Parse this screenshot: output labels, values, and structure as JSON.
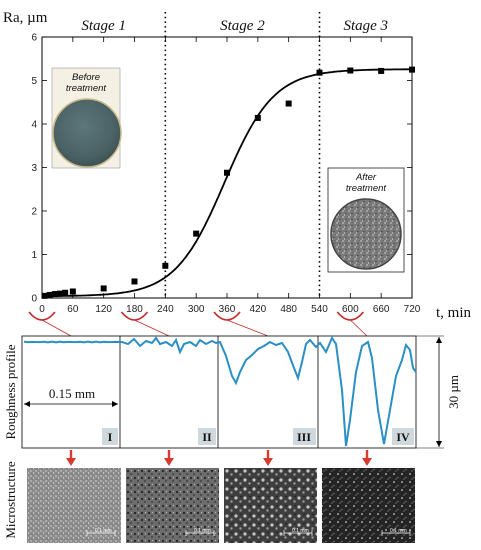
{
  "chart_data": {
    "type": "scatter",
    "ylabel": "Ra, µm",
    "xlabel": "t, min",
    "xlim": [
      0,
      720
    ],
    "ylim": [
      0,
      6
    ],
    "x_ticks": [
      0,
      60,
      120,
      180,
      240,
      300,
      360,
      420,
      480,
      540,
      600,
      660,
      720
    ],
    "y_ticks": [
      0,
      1,
      2,
      3,
      4,
      5,
      6
    ],
    "stage_boundaries": [
      240,
      540
    ],
    "stages": [
      {
        "label": "Stage 1"
      },
      {
        "label": "Stage 2"
      },
      {
        "label": "Stage 3"
      }
    ],
    "series": [
      {
        "points": [
          {
            "x": 5,
            "y": 0.05
          },
          {
            "x": 15,
            "y": 0.07
          },
          {
            "x": 25,
            "y": 0.09
          },
          {
            "x": 35,
            "y": 0.1
          },
          {
            "x": 45,
            "y": 0.12
          },
          {
            "x": 60,
            "y": 0.15
          },
          {
            "x": 120,
            "y": 0.22
          },
          {
            "x": 180,
            "y": 0.38
          },
          {
            "x": 240,
            "y": 0.74
          },
          {
            "x": 300,
            "y": 1.48
          },
          {
            "x": 360,
            "y": 2.88
          },
          {
            "x": 420,
            "y": 4.14
          },
          {
            "x": 480,
            "y": 4.47
          },
          {
            "x": 540,
            "y": 5.18
          },
          {
            "x": 600,
            "y": 5.23
          },
          {
            "x": 660,
            "y": 5.22
          },
          {
            "x": 720,
            "y": 5.25
          }
        ]
      }
    ],
    "fit_curve": {
      "type": "sigmoid",
      "base": 0.04,
      "top": 5.26,
      "midpoint": 355,
      "scale": 48
    },
    "photos": [
      {
        "caption": "Before treatment",
        "color": "#4d6467"
      },
      {
        "caption": "After treatment",
        "color": "#777777"
      }
    ]
  },
  "profile_panel": {
    "title": "Roughness profile",
    "scale_label": "0.15 mm",
    "height_label": "30 µm",
    "line_color": "#2a8fc4",
    "bracket_color": "#c42b2b",
    "sections": [
      {
        "label": "I"
      },
      {
        "label": "II"
      },
      {
        "label": "III"
      },
      {
        "label": "IV"
      }
    ],
    "bracket_times": [
      0,
      180,
      360,
      600
    ]
  },
  "microstructure": {
    "title": "Microstructure",
    "scale_text": "0.1 mm",
    "arrow_color": "#d83a2e",
    "count": 4
  }
}
